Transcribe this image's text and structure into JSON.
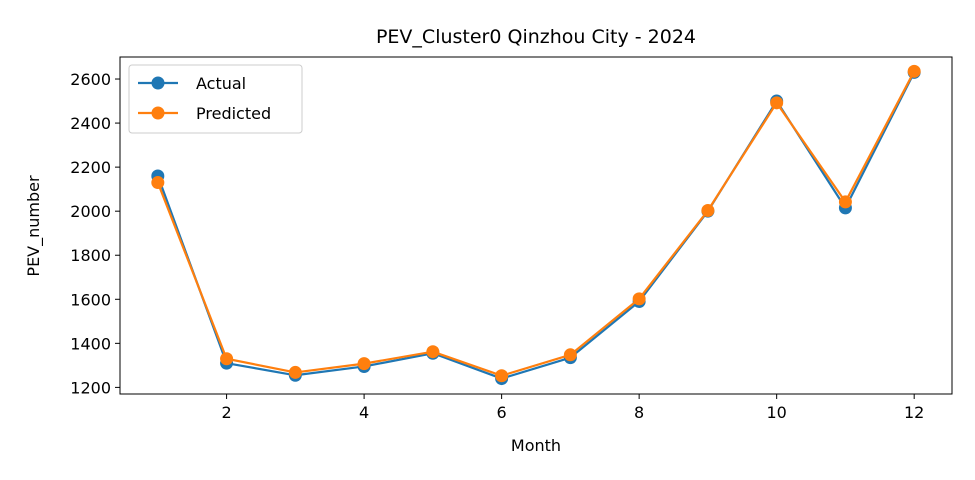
{
  "chart_data": {
    "type": "line",
    "title": "PEV_Cluster0 Qinzhou City - 2024",
    "xlabel": "Month",
    "ylabel": "PEV_number",
    "x": [
      1,
      2,
      3,
      4,
      5,
      6,
      7,
      8,
      9,
      10,
      11,
      12
    ],
    "xticks": [
      2,
      4,
      6,
      8,
      10,
      12
    ],
    "yticks": [
      1200,
      1400,
      1600,
      1800,
      2000,
      2200,
      2400,
      2600
    ],
    "xlim": [
      0.45,
      12.55
    ],
    "ylim": [
      1170,
      2700
    ],
    "grid": false,
    "legend_position": "top-left",
    "series": [
      {
        "name": "Actual",
        "color": "#1f77b4",
        "values": [
          2160,
          1310,
          1255,
          1295,
          1355,
          1240,
          1335,
          1590,
          2000,
          2500,
          2015,
          2630
        ]
      },
      {
        "name": "Predicted",
        "color": "#ff7f0e",
        "values": [
          2130,
          1330,
          1268,
          1308,
          1362,
          1253,
          1348,
          1602,
          2003,
          2492,
          2042,
          2635
        ]
      }
    ]
  }
}
